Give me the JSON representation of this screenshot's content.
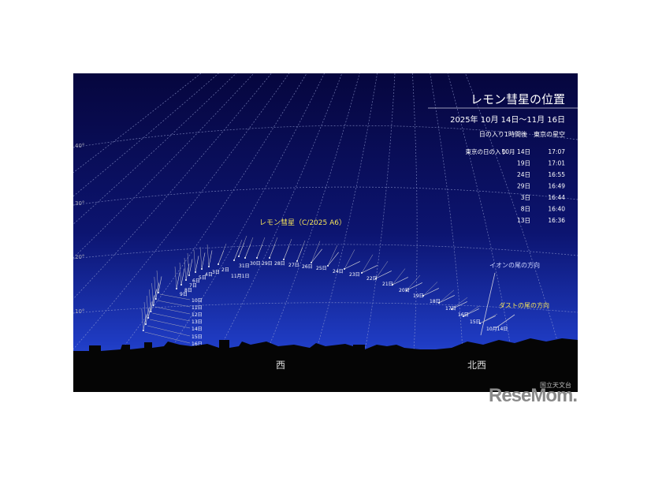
{
  "title": "レモン彗星の位置",
  "period": "2025年 10月 14日〜11月 16日",
  "condition": "日の入り1時間後　東京の星空",
  "sunset": {
    "label": "東京の日の入り",
    "rows": [
      {
        "date": "10月 14日",
        "time": "17:07"
      },
      {
        "date": "19日",
        "time": "17:01"
      },
      {
        "date": "24日",
        "time": "16:55"
      },
      {
        "date": "29日",
        "time": "16:49"
      },
      {
        "date": "3日",
        "time": "16:44"
      },
      {
        "date": "8日",
        "time": "16:40"
      },
      {
        "date": "13日",
        "time": "16:36"
      }
    ]
  },
  "comet_name": "レモン彗星（C/2025 A6）",
  "ion_tail_label": "イオンの尾の方向",
  "dust_tail_label": "ダストの尾の方向",
  "altitude_labels": [
    "40°",
    "30°",
    "20°",
    "10°"
  ],
  "directions": [
    "西",
    "北西"
  ],
  "dates": [
    "10月14日",
    "15日",
    "16日",
    "17日",
    "18日",
    "19日",
    "20日",
    "21日",
    "22日",
    "23日",
    "24日",
    "25日",
    "26日",
    "27日",
    "28日",
    "29日",
    "30日",
    "31日",
    "11月1日",
    "2日",
    "3日",
    "4日",
    "5日",
    "6日",
    "7日",
    "8日",
    "9日",
    "10日",
    "11日",
    "12日",
    "13日",
    "14日",
    "15日",
    "16日"
  ],
  "credit": "国立天文台",
  "watermark": "ReseMom",
  "colors": {
    "sky_top": "#0a0a4a",
    "sky_horizon": "#2a4fd6",
    "label_yellow": "#f5e35a",
    "ground": "#050505"
  }
}
